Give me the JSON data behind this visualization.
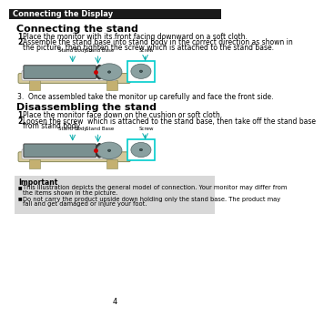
{
  "header_text": "Connecting the Display",
  "header_bg": "#1a1a1a",
  "header_fg": "#ffffff",
  "section1_title": "Connecting the stand",
  "step1a": "Place the monitor with its front facing downward on a soft cloth.",
  "step1b": "Assemble the stand base into stand body in the correct direction as shown in",
  "step1b2": "the picture, then tighten the screw which is attached to the stand base.",
  "step3_text": "3.  Once assembled take the monitor up carefully and face the front side.",
  "section2_title": "Disassembling the stand",
  "step2a": "Place the monitor face down on the cushion or soft cloth.",
  "step2b": "Loosen the screw  which is attached to the stand base, then take off the stand base",
  "step2b2": "from stand body.",
  "important_title": "Important",
  "bullet1a": "This illustration depicts the general model of connection. Your monitor may differ from",
  "bullet1b": "the items shown in the picture.",
  "bullet2a": "Do not carry the product upside down holding only the stand base. The product may",
  "bullet2b": "fall and get damaged or injure your foot.",
  "label_stand_body": "Stand Body",
  "label_stand_base": "Stand Base",
  "label_screw": "Screw",
  "page_num": "4",
  "bg_color": "#ffffff",
  "important_bg": "#d8d8d8",
  "table_color": "#d4c89a",
  "leg_color": "#c4b070",
  "monitor_color": "#7a9090",
  "monitor_edge": "#444444",
  "stand_disk_color": "#8aa0a0",
  "stand_disk_edge": "#556666",
  "stand_pole_color": "#333333",
  "screw_box_color": "#00cccc",
  "arrow_color": "#00aaaa",
  "red_dot_color": "#cc0000"
}
